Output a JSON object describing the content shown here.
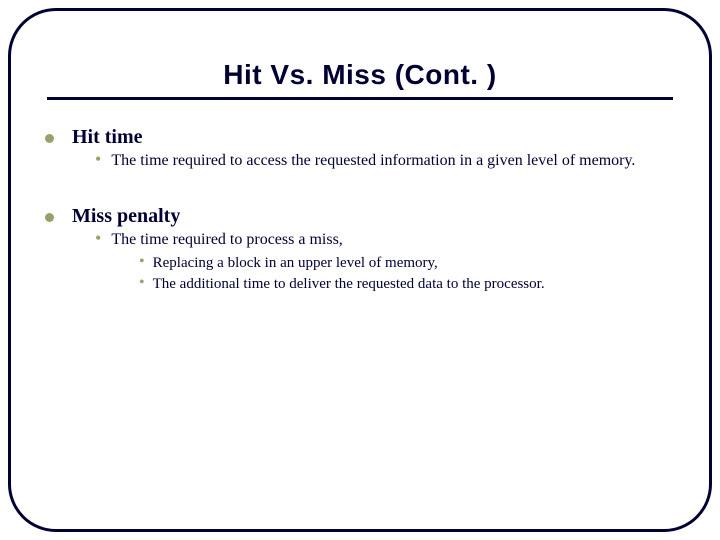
{
  "slide": {
    "title": "Hit Vs. Miss (Cont. )",
    "frame_border_color": "#000033",
    "frame_border_width": 3,
    "frame_border_radius": 48,
    "background_color": "#ffffff",
    "title_font_family": "Arial",
    "title_font_weight": "900",
    "title_font_size": 28,
    "title_color": "#000033",
    "rule_color": "#000033",
    "rule_width": 3,
    "bullet_color": "#9aa06a",
    "body_font_family": "Georgia",
    "body_color": "#000033",
    "level1_font_size": 20,
    "level2_font_size": 16,
    "level3_font_size": 15,
    "sections": [
      {
        "heading": "Hit time",
        "items": [
          {
            "text": "The time required to access the requested information in a given level of memory.",
            "subitems": []
          }
        ]
      },
      {
        "heading": "Miss penalty",
        "items": [
          {
            "text": "The time required to process a miss,",
            "subitems": [
              "Replacing a block in an upper level of memory,",
              "The additional time to deliver the requested data to the processor."
            ]
          }
        ]
      }
    ]
  }
}
